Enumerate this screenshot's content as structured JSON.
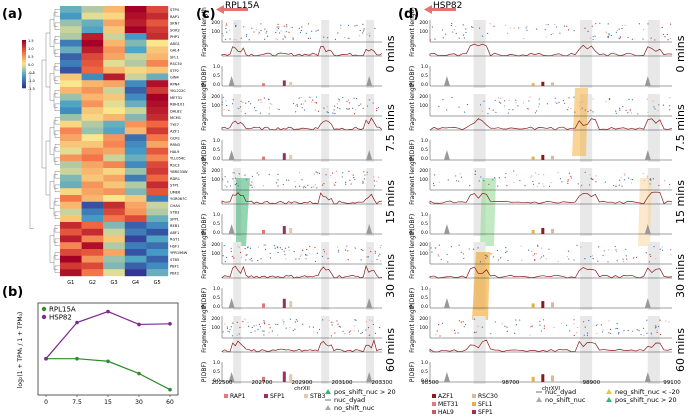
{
  "figure": {
    "panel_labels": {
      "a": "(a)",
      "b": "(b)",
      "c": "(c)",
      "d": "(d)"
    }
  },
  "heatmap": {
    "genes": [
      "STP4",
      "RAP1",
      "SKN7",
      "SOK2",
      "PHP1",
      "ABG1",
      "GAL4",
      "SFL1",
      "RSC30",
      "STP2",
      "GIN4",
      "RPN4",
      "YKL222C",
      "MET31",
      "RBH101",
      "DAL82",
      "MCM1",
      "TYE7",
      "AZF1",
      "GCR1",
      "RRN3",
      "HAL9",
      "YLL054C",
      "RSC3",
      "YBR033W",
      "RDR1",
      "STP1",
      "UME6",
      "YGR067C",
      "CHA4",
      "STB3",
      "SPP1",
      "REB1",
      "ABF1",
      "RGT1",
      "HSF1",
      "YPR196W",
      "STB5",
      "PBF1",
      "PBF2"
    ],
    "groups": [
      "G1",
      "G2",
      "G3",
      "G4",
      "G5"
    ],
    "colorbar_ticks": [
      "1.5",
      "1.0",
      "0.5",
      "0.0",
      "-0.5",
      "-1.0",
      "-1.5"
    ],
    "rows": [
      [
        -0.6,
        -0.3,
        0.3,
        1.5,
        1.0
      ],
      [
        -0.8,
        -0.1,
        0.1,
        1.4,
        1.2
      ],
      [
        -0.4,
        -0.6,
        0.4,
        1.3,
        0.9
      ],
      [
        -0.2,
        -0.7,
        0.2,
        1.5,
        1.1
      ],
      [
        -0.3,
        1.3,
        -0.2,
        -0.8,
        1.2
      ],
      [
        -1.0,
        1.5,
        0.3,
        -0.5,
        0.0
      ],
      [
        -0.6,
        1.3,
        0.5,
        -0.7,
        0.2
      ],
      [
        -1.2,
        1.0,
        0.4,
        -0.2,
        0.3
      ],
      [
        -1.0,
        0.9,
        -0.1,
        -0.3,
        0.6
      ],
      [
        -1.3,
        0.8,
        0.3,
        0.1,
        0.2
      ],
      [
        0.2,
        -0.9,
        1.3,
        -0.2,
        -0.6
      ],
      [
        0.0,
        0.3,
        0.4,
        -0.9,
        1.4
      ],
      [
        0.3,
        0.5,
        -0.2,
        -1.2,
        1.1
      ],
      [
        -0.4,
        0.3,
        0.2,
        -0.9,
        1.5
      ],
      [
        -0.7,
        0.5,
        -0.1,
        -0.6,
        1.4
      ],
      [
        -0.9,
        0.2,
        0.0,
        -0.2,
        1.3
      ],
      [
        -0.4,
        0.1,
        0.3,
        -0.5,
        1.2
      ],
      [
        0.1,
        -0.3,
        -0.6,
        0.5,
        0.8
      ],
      [
        0.6,
        -0.4,
        -0.7,
        0.3,
        1.1
      ],
      [
        0.4,
        0.0,
        0.5,
        -1.1,
        0.7
      ],
      [
        0.2,
        0.2,
        0.6,
        -0.9,
        0.4
      ],
      [
        -0.1,
        0.5,
        0.4,
        -0.8,
        0.9
      ],
      [
        0.5,
        0.7,
        -0.2,
        -0.6,
        0.6
      ],
      [
        -0.3,
        0.4,
        0.6,
        -0.9,
        1.0
      ],
      [
        -0.2,
        0.3,
        0.1,
        -0.4,
        1.1
      ],
      [
        -0.5,
        0.2,
        0.4,
        -1.0,
        0.8
      ],
      [
        -0.6,
        0.5,
        0.2,
        -0.3,
        1.2
      ],
      [
        0.1,
        0.4,
        0.5,
        -0.5,
        0.9
      ],
      [
        0.7,
        0.3,
        0.0,
        0.2,
        -1.0
      ],
      [
        0.3,
        -1.3,
        1.2,
        0.4,
        -0.2
      ],
      [
        -0.2,
        -1.0,
        1.0,
        0.5,
        -0.3
      ],
      [
        0.2,
        -0.8,
        0.7,
        1.0,
        -0.6
      ],
      [
        1.2,
        0.8,
        -0.5,
        -1.2,
        -0.9
      ],
      [
        0.9,
        1.2,
        -0.2,
        -1.0,
        -1.3
      ],
      [
        1.3,
        0.6,
        0.2,
        -1.4,
        -0.7
      ],
      [
        0.6,
        1.4,
        -0.3,
        -1.0,
        -1.1
      ],
      [
        1.0,
        0.9,
        0.4,
        -1.3,
        -0.8
      ],
      [
        1.5,
        0.5,
        -0.4,
        -0.7,
        -1.2
      ],
      [
        1.1,
        1.0,
        -0.5,
        -1.2,
        -0.9
      ],
      [
        1.4,
        0.7,
        -0.1,
        -1.5,
        -0.6
      ]
    ]
  },
  "chart_data": {
    "type": "line",
    "x": [
      0,
      7.5,
      15,
      30,
      60
    ],
    "x_tick_labels": [
      "0",
      "7.5",
      "15",
      "30",
      "60"
    ],
    "series": [
      {
        "name": "RPL15A",
        "color": "#2e8b2e",
        "values": [
          0.0,
          0.0,
          -0.4,
          -2.3,
          -4.8
        ]
      },
      {
        "name": "HSP82",
        "color": "#7b2a8e",
        "values": [
          0.0,
          5.6,
          7.3,
          5.3,
          5.4
        ]
      }
    ],
    "ylabel": "log₂(1 + TPMₜ / 1 + TPM₀)",
    "ylim": [
      -5,
      8
    ]
  },
  "panel_c": {
    "gene": "RPL15A",
    "timepoints": [
      "0 mins",
      "7.5 mins",
      "15 mins",
      "30 mins",
      "60 mins"
    ],
    "ylabel_top": "Fragment length",
    "ylabel_bottom": "P(DBF)",
    "y_ticks_top": [
      "200",
      "100"
    ],
    "y_ticks_bottom": [
      "1.0",
      "0.5",
      "0.0"
    ],
    "x_ticks": [
      "202500",
      "202700",
      "202900",
      "203100",
      "203300"
    ],
    "chrom": "chrXII",
    "legend": [
      {
        "label": "RAP1",
        "color": "#e07a7a"
      },
      {
        "label": "SFP1",
        "color": "#9b2f5a"
      },
      {
        "label": "STB3",
        "color": "#e6c9a8"
      }
    ],
    "shift_legend": {
      "pos": "pos_shift_nuc > 20",
      "dyad": "nuc_dyad",
      "none": "no_shift_nuc"
    }
  },
  "panel_d": {
    "gene": "HSP82",
    "timepoints": [
      "0 mins",
      "7.5 mins",
      "15 mins",
      "30 mins",
      "60 mins"
    ],
    "ylabel_top": "Fragment length",
    "ylabel_bottom": "P(DBF)",
    "y_ticks_top": [
      "200",
      "100"
    ],
    "y_ticks_bottom": [
      "1.0",
      "0.5",
      "0.0"
    ],
    "x_ticks": [
      "98500",
      "98700",
      "98900",
      "99100"
    ],
    "chrom": "chrXVI",
    "legend": [
      {
        "label": "AZF1",
        "color": "#8b1a1a"
      },
      {
        "label": "MET31",
        "color": "#e07a7a"
      },
      {
        "label": "HAL9",
        "color": "#c95a6a"
      },
      {
        "label": "RSC30",
        "color": "#d9b99b"
      },
      {
        "label": "SFL1",
        "color": "#e3b04a"
      },
      {
        "label": "SFP1",
        "color": "#9b2f5a"
      }
    ],
    "shift_legend": {
      "dyad": "nuc_dyad",
      "none": "no_shift_nuc",
      "neg": "neg_shift_nuc < -20",
      "pos": "pos_shift_nuc > 20"
    }
  }
}
